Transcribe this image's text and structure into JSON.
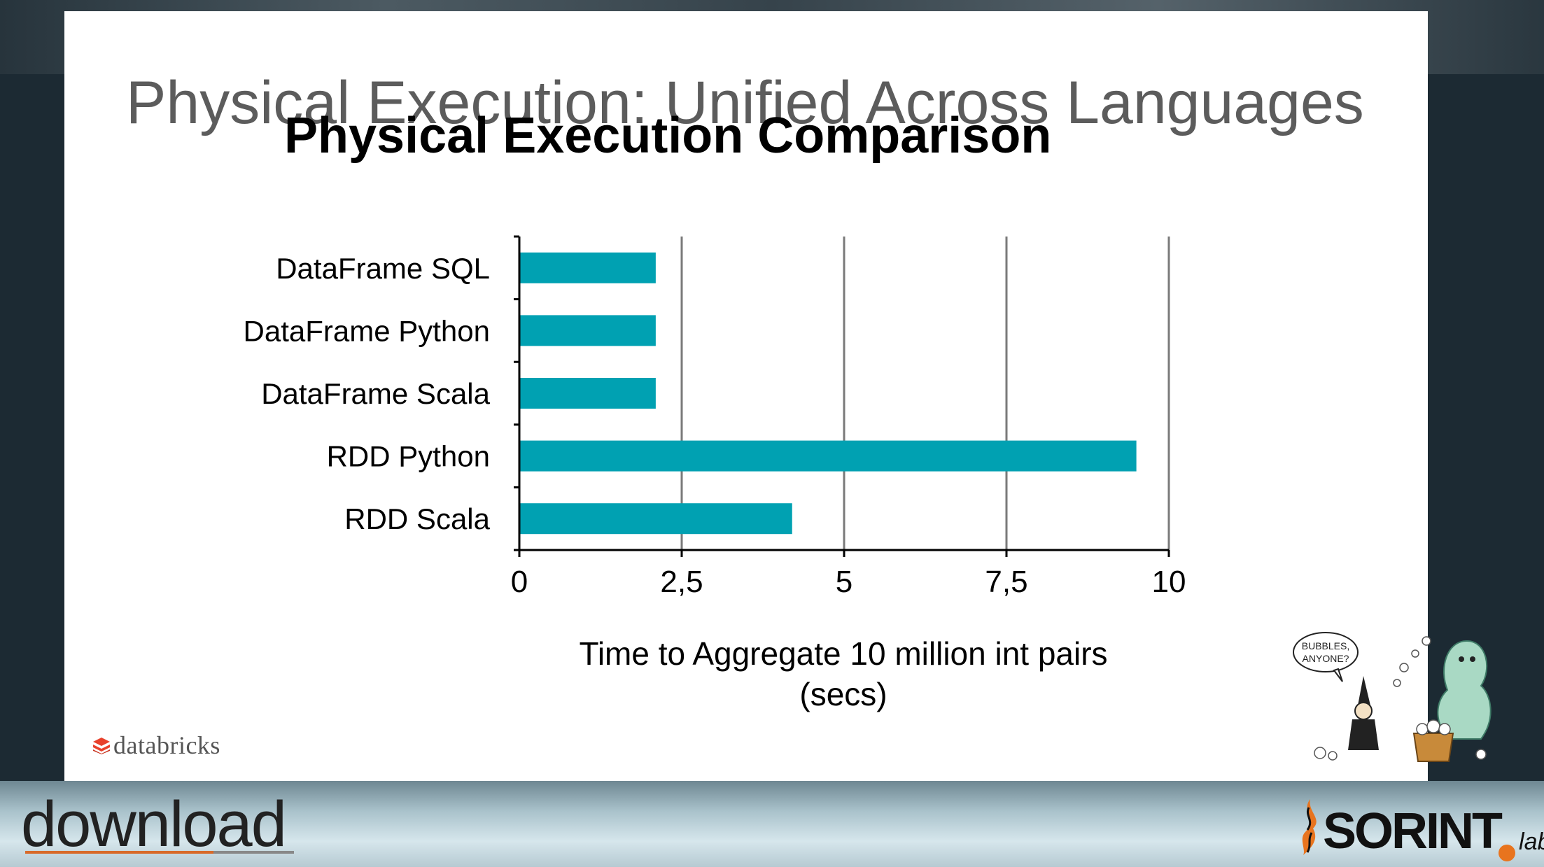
{
  "slide": {
    "title": "Physical Execution: Unified Across Languages"
  },
  "chart_data": {
    "type": "bar",
    "orientation": "horizontal",
    "title": "Physical Execution Comparison",
    "categories": [
      "DataFrame SQL",
      "DataFrame Python",
      "DataFrame Scala",
      "RDD Python",
      "RDD Scala"
    ],
    "values": [
      2.1,
      2.1,
      2.1,
      9.5,
      4.2
    ],
    "xlabel_lines": [
      "Time to Aggregate 10 million int pairs",
      "(secs)"
    ],
    "ylabel": "",
    "xlim": [
      0,
      10
    ],
    "xticks": [
      0,
      2.5,
      5,
      7.5,
      10
    ],
    "xtick_labels": [
      "0",
      "2,5",
      "5",
      "7,5",
      "10"
    ],
    "grid": "vertical",
    "legend": "none",
    "bar_color": "#00a1b2"
  },
  "logos": {
    "databricks": "databricks",
    "download": "download",
    "sorint": "SORINT",
    "sorint_suffix": "lab"
  },
  "cartoon": {
    "speech_line1": "BUBBLES,",
    "speech_line2": "ANYONE?"
  },
  "icons": [
    "databricks-icon",
    "sorint-flame-icon",
    "wizard-cartoon"
  ]
}
